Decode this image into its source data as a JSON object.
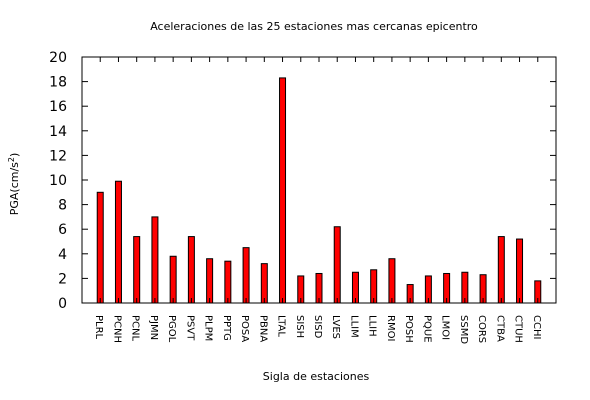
{
  "chart_data": {
    "type": "bar",
    "title": "Aceleraciones de las 25 estaciones mas cercanas epicentro",
    "xlabel": "Sigla de estaciones",
    "ylabel": {
      "main": "PGA(cm/s",
      "sup": "2",
      "close": ")"
    },
    "ylim": [
      0,
      20
    ],
    "yticks": [
      "0",
      "2",
      "4",
      "6",
      "8",
      "10",
      "12",
      "14",
      "16",
      "18",
      "20"
    ],
    "grid": false,
    "legend": "none",
    "bar_color": "#ff0000",
    "categories": [
      "PLRL",
      "PCNH",
      "PCNL",
      "PJMN",
      "PGOL",
      "PSVT",
      "PLPM",
      "PPTG",
      "POSA",
      "PBNA",
      "LTAL",
      "SISH",
      "SISD",
      "LVES",
      "LLIM",
      "LLIH",
      "RMOI",
      "POSH",
      "PQUE",
      "LMOI",
      "SSMD",
      "CORS",
      "CTBA",
      "CTUH",
      "CCHI"
    ],
    "values": [
      9.0,
      9.9,
      5.4,
      7.0,
      3.8,
      5.4,
      3.6,
      3.4,
      4.5,
      3.2,
      18.3,
      2.2,
      2.4,
      6.2,
      2.5,
      2.7,
      3.6,
      1.5,
      2.2,
      2.4,
      2.5,
      2.3,
      5.4,
      5.2,
      1.8
    ]
  }
}
